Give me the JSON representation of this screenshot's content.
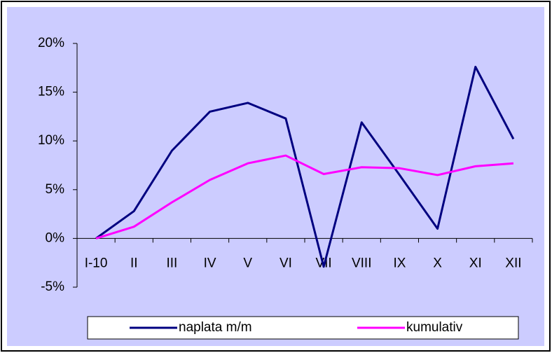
{
  "chart_data": {
    "type": "line",
    "categories": [
      "I-10",
      "II",
      "III",
      "IV",
      "V",
      "VI",
      "VII",
      "VIII",
      "IX",
      "X",
      "XI",
      "XII"
    ],
    "series": [
      {
        "name": "naplata m/m",
        "color": "#000080",
        "values": [
          0,
          2.8,
          9.0,
          13.0,
          13.9,
          12.3,
          -2.9,
          11.9,
          6.5,
          1.0,
          17.6,
          10.2
        ]
      },
      {
        "name": "kumulativ",
        "color": "#ff00ff",
        "values": [
          0,
          1.2,
          3.7,
          6.0,
          7.7,
          8.5,
          6.6,
          7.3,
          7.2,
          6.5,
          7.4,
          7.7
        ]
      }
    ],
    "ylim": [
      -5,
      20
    ],
    "yticks": [
      {
        "value": -5,
        "label": "-5%"
      },
      {
        "value": 0,
        "label": "0%"
      },
      {
        "value": 5,
        "label": "5%"
      },
      {
        "value": 10,
        "label": "10%"
      },
      {
        "value": 15,
        "label": "15%"
      },
      {
        "value": 20,
        "label": "20%"
      }
    ],
    "legend": "bottom",
    "grid": false
  }
}
